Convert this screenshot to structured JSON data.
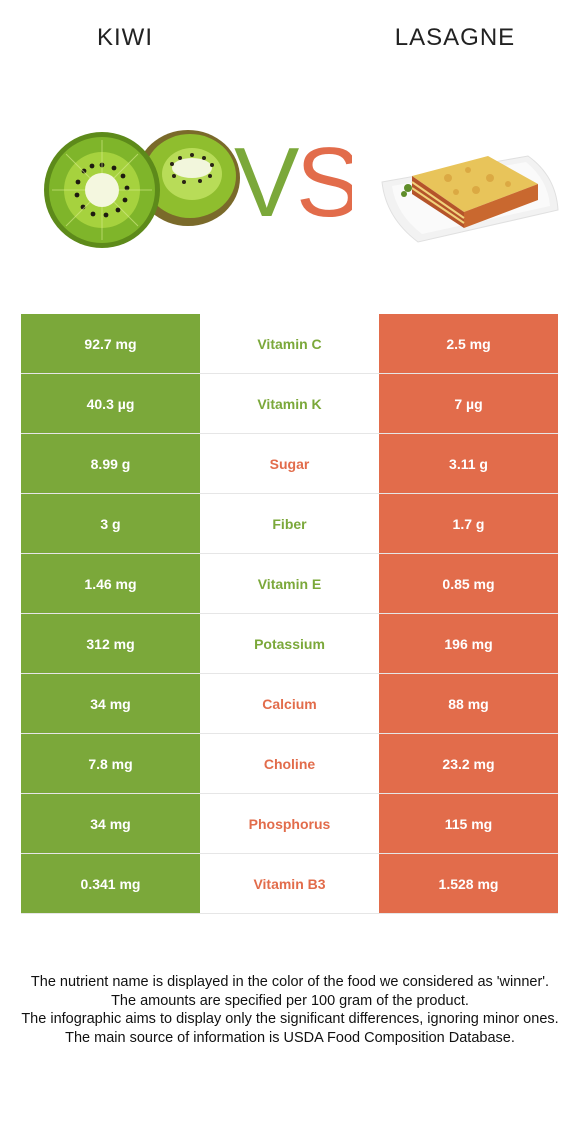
{
  "header": {
    "left_food": "KIWI",
    "right_food": "LASAGNE",
    "vs_v": "V",
    "vs_s": "S"
  },
  "colors": {
    "left": "#7ba83a",
    "right": "#e26c4b"
  },
  "rows": [
    {
      "left": "92.7 mg",
      "nutrient": "Vitamin C",
      "right": "2.5 mg",
      "winner": "left"
    },
    {
      "left": "40.3 µg",
      "nutrient": "Vitamin K",
      "right": "7 µg",
      "winner": "left"
    },
    {
      "left": "8.99 g",
      "nutrient": "Sugar",
      "right": "3.11 g",
      "winner": "right"
    },
    {
      "left": "3 g",
      "nutrient": "Fiber",
      "right": "1.7 g",
      "winner": "left"
    },
    {
      "left": "1.46 mg",
      "nutrient": "Vitamin E",
      "right": "0.85 mg",
      "winner": "left"
    },
    {
      "left": "312 mg",
      "nutrient": "Potassium",
      "right": "196 mg",
      "winner": "left"
    },
    {
      "left": "34 mg",
      "nutrient": "Calcium",
      "right": "88 mg",
      "winner": "right"
    },
    {
      "left": "7.8 mg",
      "nutrient": "Choline",
      "right": "23.2 mg",
      "winner": "right"
    },
    {
      "left": "34 mg",
      "nutrient": "Phosphorus",
      "right": "115 mg",
      "winner": "right"
    },
    {
      "left": "0.341 mg",
      "nutrient": "Vitamin B3",
      "right": "1.528 mg",
      "winner": "right"
    }
  ],
  "footer": {
    "line1": "The nutrient name is displayed in the color of the food we considered as 'winner'.",
    "line2": "The amounts are specified per 100 gram of the product.",
    "line3": "The infographic aims to display only the significant differences, ignoring minor ones.",
    "line4": "The main source of information is USDA Food Composition Database."
  }
}
